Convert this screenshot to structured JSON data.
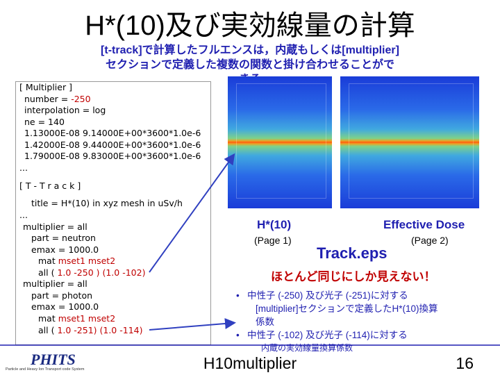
{
  "header": {
    "title": "H*(10)及び実効線量の計算",
    "subtitle": [
      "[t-track]で計算したフルエンスは，内蔵もしくは[multiplier]",
      "セクションで定義した複数の関数と掛け合わせることがで",
      "きる"
    ]
  },
  "code": [
    {
      "text": "[ Multiplier ]",
      "red": ""
    },
    {
      "text": "number = ",
      "red": "-250"
    },
    {
      "text": "interpolation = log",
      "red": ""
    },
    {
      "text": "ne =   140",
      "red": ""
    },
    {
      "text": "1.13000E-08  9.14000E+00*3600*1.0e-6",
      "red": ""
    },
    {
      "text": "1.42000E-08  9.44000E+00*3600*1.0e-6",
      "red": ""
    },
    {
      "text": "1.79000E-08  9.83000E+00*3600*1.0e-6",
      "red": ""
    },
    {
      "text": "...",
      "red": ""
    },
    {
      "text": "[ T - T r a c k ]",
      "red": ""
    },
    {
      "text": "title = H*(10) in xyz mesh in uSv/h",
      "red": ""
    },
    {
      "text": "...",
      "red": ""
    },
    {
      "text": "multiplier = all",
      "red": ""
    },
    {
      "text": "part =  neutron",
      "red": ""
    },
    {
      "text": "emax =     1000.0",
      "red": ""
    },
    {
      "text": "mat      ",
      "red": "mset1   mset2"
    },
    {
      "text": "all ( ",
      "red": "1.0 -250 )  (1.0 -102)"
    },
    {
      "text": "multiplier = all",
      "red": ""
    },
    {
      "text": "part =  photon",
      "red": ""
    },
    {
      "text": "emax =     1000.0",
      "red": ""
    },
    {
      "text": "mat      ",
      "red": "mset1   mset2"
    },
    {
      "text": "all ( ",
      "red": "1.0  -251)  (1.0 -114)"
    }
  ],
  "figures": {
    "left_label": "H*(10)",
    "left_page": "(Page 1)",
    "right_label": "Effective Dose",
    "right_page": "(Page 2)",
    "file": "Track.eps",
    "remark": "ほとんど同じにしか見えない！"
  },
  "bullets": [
    [
      "中性子 (-250) 及び光子 (-251)に対する",
      "[multiplier]セクションで定義したH*(10)換算",
      "係数"
    ],
    [
      "中性子 (-102) 及び光子 (-114)に対する",
      "内蔵の実効線量換算係数"
    ]
  ],
  "footer": {
    "logo": "PHITS",
    "logo_sub": "Particle and Heavy Ion Transport code System",
    "center": "H10multiplier",
    "page": "16"
  }
}
